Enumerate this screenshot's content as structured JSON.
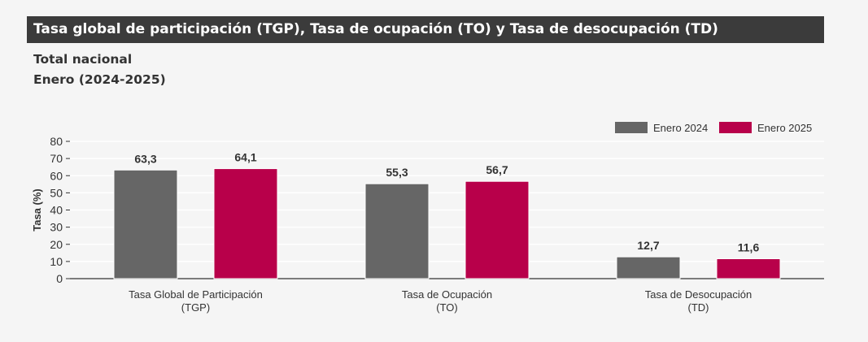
{
  "title": "Tasa global de participación (TGP), Tasa de ocupación (TO) y Tasa de desocupación (TD)",
  "subtitle_1": "Total nacional",
  "subtitle_2": "Enero (2024-2025)",
  "chart_data": {
    "type": "bar",
    "categories": [
      [
        "Tasa Global de Participación",
        "(TGP)"
      ],
      [
        "Tasa de Ocupación",
        "(TO)"
      ],
      [
        "Tasa de Desocupación",
        "(TD)"
      ]
    ],
    "series": [
      {
        "name": "Enero 2024",
        "color": "#666666",
        "values": [
          63.3,
          55.3,
          12.7
        ],
        "labels": [
          "63,3",
          "55,3",
          "12,7"
        ]
      },
      {
        "name": "Enero 2025",
        "color": "#b8004a",
        "values": [
          64.1,
          56.7,
          11.6
        ],
        "labels": [
          "64,1",
          "56,7",
          "11,6"
        ]
      }
    ],
    "ylabel": "Tasa (%)",
    "xlabel": "",
    "ylim": [
      0,
      80
    ],
    "yticks": [
      0,
      10,
      20,
      30,
      40,
      50,
      60,
      70,
      80
    ],
    "grid": true,
    "legend": "top-right"
  }
}
